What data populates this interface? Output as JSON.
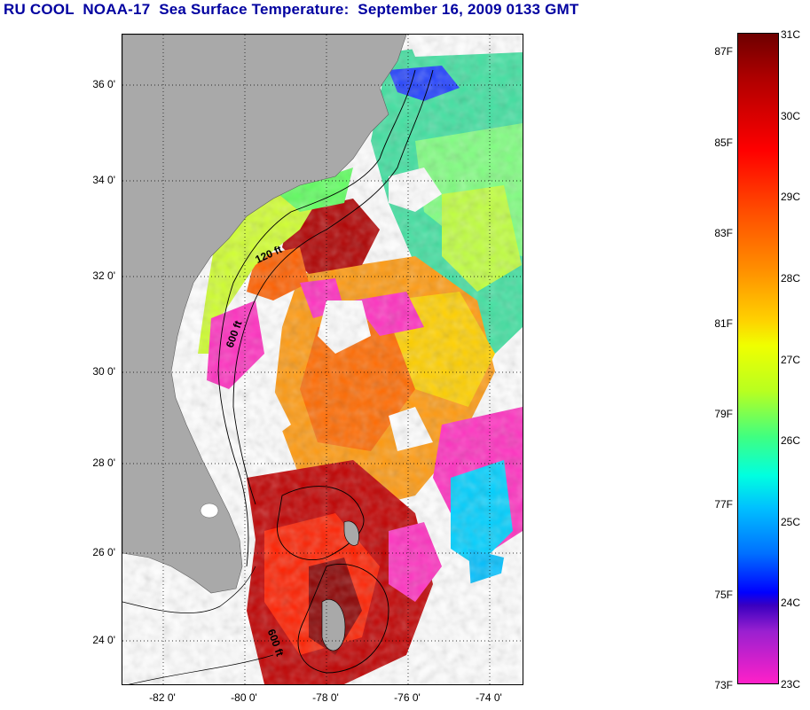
{
  "title": "RU COOL  NOAA-17  Sea Surface Temperature:  September 16, 2009 0133 GMT",
  "map": {
    "lat_labels": [
      "36 0'",
      "34 0'",
      "32 0'",
      "30 0'",
      "28 0'",
      "26 0'",
      "24 0'"
    ],
    "lon_labels": [
      "-82 0'",
      "-80 0'",
      "-78 0'",
      "-76 0'",
      "-74 0'"
    ],
    "contour_labels": [
      "120 ft",
      "600 ft",
      "600 ft"
    ],
    "colors": {
      "land": "#a9a9a9",
      "cloud": "#ffffff",
      "warm": "#c00000",
      "hot": "#ff6a00",
      "cool": "#00e0a0",
      "cold": "#ff30c0"
    }
  },
  "colorbar": {
    "fahrenheit": [
      "87F",
      "85F",
      "83F",
      "81F",
      "79F",
      "77F",
      "75F",
      "73F"
    ],
    "celsius": [
      "31C",
      "30C",
      "29C",
      "28C",
      "27C",
      "26C",
      "25C",
      "24C",
      "23C"
    ]
  }
}
